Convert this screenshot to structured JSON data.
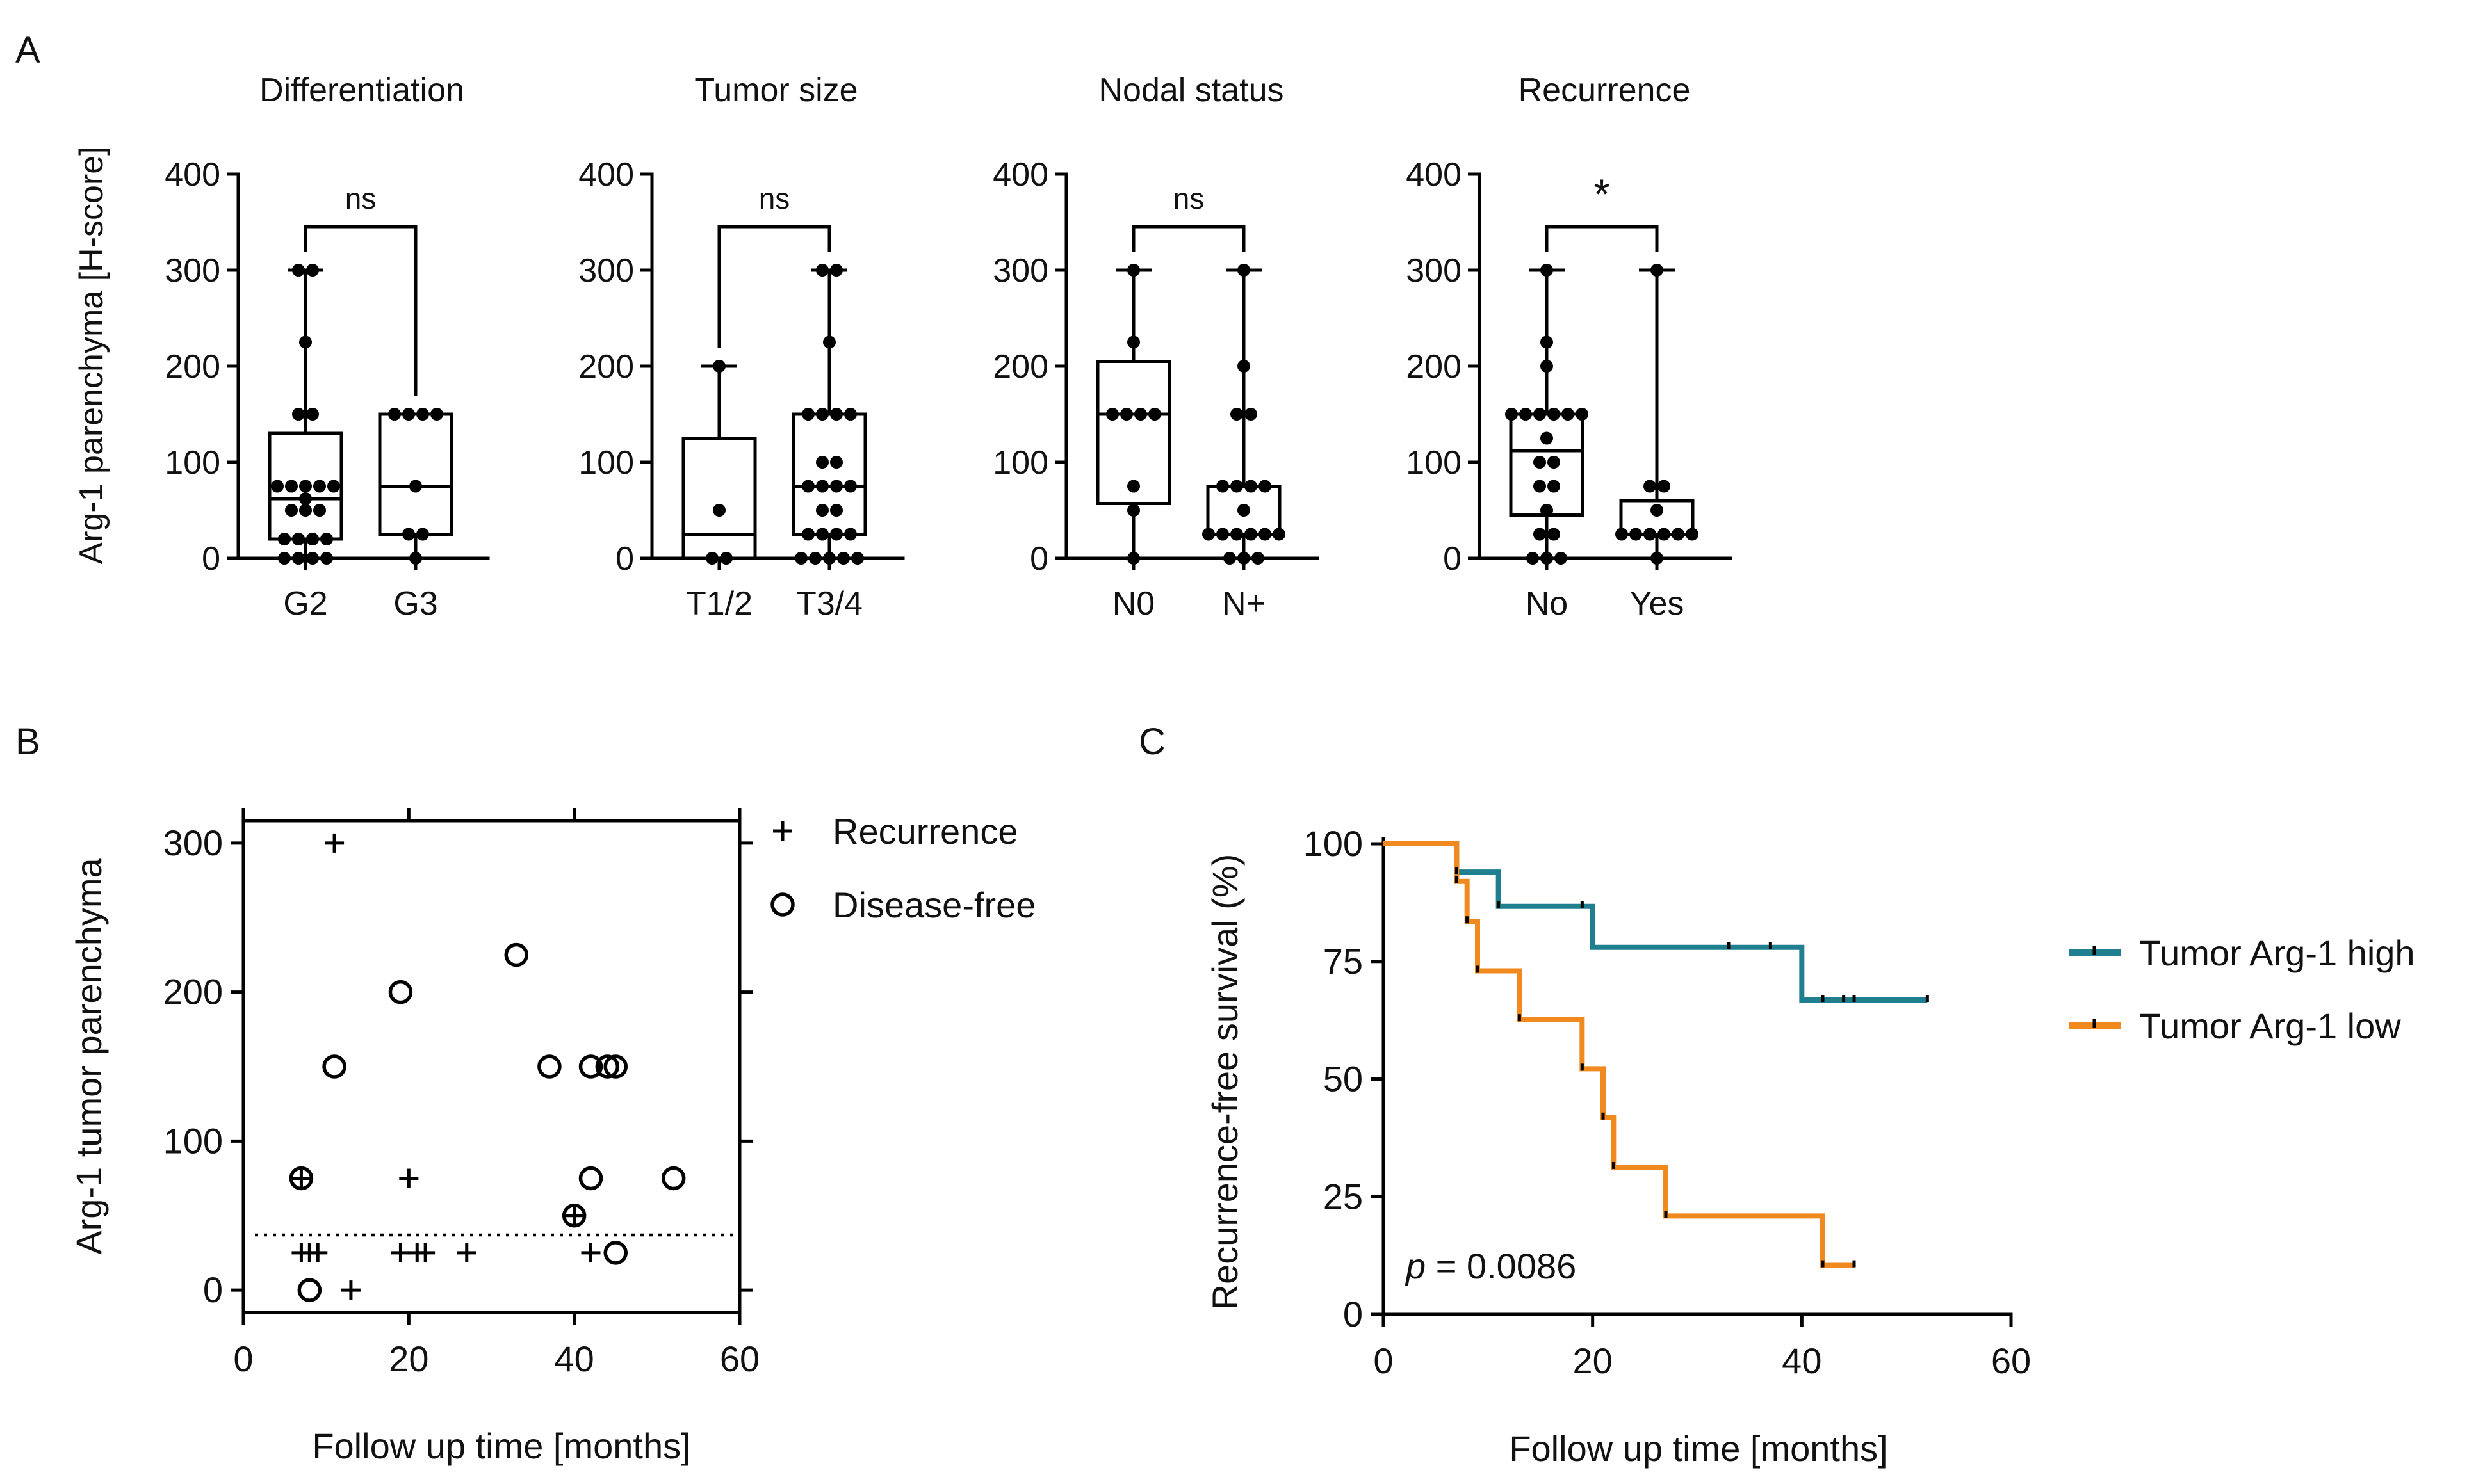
{
  "figure": {
    "panel_letters": [
      "A",
      "B",
      "C"
    ]
  },
  "colors": {
    "axis": "#000000",
    "km_high": "#1F7F8F",
    "km_low": "#F08A1E"
  },
  "chart_data": [
    {
      "id": "A1",
      "type": "box",
      "title": "Differentiation",
      "ylabel": "Arg-1 parenchyma [H-score]",
      "ylim": [
        0,
        400
      ],
      "yticks": [
        0,
        100,
        200,
        300,
        400
      ],
      "categories": [
        "G2",
        "G3"
      ],
      "boxes": [
        {
          "min": 0,
          "q1": 20,
          "median": 62,
          "q3": 130,
          "max": 300
        },
        {
          "min": 0,
          "q1": 25,
          "median": 75,
          "q3": 150,
          "max": 150
        }
      ],
      "points": [
        [
          0,
          0,
          0,
          0,
          20,
          20,
          20,
          20,
          50,
          50,
          50,
          62,
          75,
          75,
          75,
          75,
          75,
          150,
          150,
          225,
          300,
          300
        ],
        [
          0,
          25,
          25,
          75,
          150,
          150,
          150,
          150
        ]
      ],
      "significance": "ns"
    },
    {
      "id": "A2",
      "type": "box",
      "title": "Tumor size",
      "ylabel": "",
      "ylim": [
        0,
        400
      ],
      "yticks": [
        0,
        100,
        200,
        300,
        400
      ],
      "categories": [
        "T1/2",
        "T3/4"
      ],
      "boxes": [
        {
          "min": 0,
          "q1": 0,
          "median": 25,
          "q3": 125,
          "max": 200
        },
        {
          "min": 0,
          "q1": 25,
          "median": 75,
          "q3": 150,
          "max": 300
        }
      ],
      "points": [
        [
          0,
          0,
          50,
          200
        ],
        [
          0,
          0,
          0,
          0,
          0,
          25,
          25,
          25,
          25,
          50,
          50,
          75,
          75,
          75,
          75,
          100,
          100,
          150,
          150,
          150,
          150,
          225,
          300,
          300
        ]
      ],
      "significance": "ns"
    },
    {
      "id": "A3",
      "type": "box",
      "title": "Nodal status",
      "ylabel": "",
      "ylim": [
        0,
        400
      ],
      "yticks": [
        0,
        100,
        200,
        300,
        400
      ],
      "categories": [
        "N0",
        "N+"
      ],
      "boxes": [
        {
          "min": 0,
          "q1": 57,
          "median": 150,
          "q3": 205,
          "max": 300
        },
        {
          "min": 0,
          "q1": 25,
          "median": 25,
          "q3": 75,
          "max": 300
        }
      ],
      "points": [
        [
          0,
          50,
          75,
          150,
          150,
          150,
          150,
          225,
          300
        ],
        [
          0,
          0,
          0,
          25,
          25,
          25,
          25,
          25,
          25,
          50,
          75,
          75,
          75,
          75,
          150,
          150,
          200,
          300
        ]
      ],
      "significance": "ns"
    },
    {
      "id": "A4",
      "type": "box",
      "title": "Recurrence",
      "ylabel": "",
      "ylim": [
        0,
        400
      ],
      "yticks": [
        0,
        100,
        200,
        300,
        400
      ],
      "categories": [
        "No",
        "Yes"
      ],
      "boxes": [
        {
          "min": 0,
          "q1": 45,
          "median": 112,
          "q3": 150,
          "max": 300
        },
        {
          "min": 0,
          "q1": 25,
          "median": 25,
          "q3": 60,
          "max": 300
        }
      ],
      "points": [
        [
          0,
          0,
          0,
          25,
          25,
          50,
          75,
          75,
          100,
          100,
          125,
          150,
          150,
          150,
          150,
          150,
          150,
          200,
          225,
          300
        ],
        [
          0,
          25,
          25,
          25,
          25,
          25,
          25,
          50,
          75,
          75,
          300
        ]
      ],
      "significance": "*"
    },
    {
      "id": "B",
      "type": "scatter",
      "xlabel": "Follow up time [months]",
      "ylabel": "Arg-1 tumor parenchyma",
      "xlim": [
        0,
        60
      ],
      "ylim": [
        -15,
        315
      ],
      "xticks": [
        0,
        20,
        40,
        60
      ],
      "yticks": [
        0,
        100,
        200,
        300
      ],
      "threshold": 37,
      "series": [
        {
          "name": "Recurrence",
          "marker": "+",
          "points": [
            [
              11,
              300
            ],
            [
              7,
              75
            ],
            [
              20,
              75
            ],
            [
              40,
              50
            ],
            [
              7,
              25
            ],
            [
              8,
              25
            ],
            [
              9,
              25
            ],
            [
              19,
              25
            ],
            [
              21,
              25
            ],
            [
              22,
              25
            ],
            [
              27,
              25
            ],
            [
              42,
              25
            ],
            [
              13,
              0
            ]
          ]
        },
        {
          "name": "Disease-free",
          "marker": "o",
          "points": [
            [
              33,
              225
            ],
            [
              19,
              200
            ],
            [
              11,
              150
            ],
            [
              37,
              150
            ],
            [
              42,
              150
            ],
            [
              44,
              150
            ],
            [
              45,
              150
            ],
            [
              7,
              75
            ],
            [
              42,
              75
            ],
            [
              52,
              75
            ],
            [
              40,
              50
            ],
            [
              45,
              25
            ],
            [
              8,
              0
            ]
          ]
        }
      ]
    },
    {
      "id": "C",
      "type": "line",
      "xlabel": "Follow up time [months]",
      "ylabel": "Recurrence-free survival (%)",
      "xlim": [
        0,
        60
      ],
      "ylim": [
        0,
        100
      ],
      "xticks": [
        0,
        20,
        40,
        60
      ],
      "yticks": [
        0,
        25,
        50,
        75,
        100
      ],
      "annotation": {
        "p_label": "p",
        "p_value": "= 0.0086"
      },
      "series": [
        {
          "name": "Tumor Arg-1 high",
          "steps": [
            [
              0,
              100
            ],
            [
              7,
              94
            ],
            [
              11,
              86.7
            ],
            [
              20,
              78
            ],
            [
              40,
              66.8
            ],
            [
              52,
              66.8
            ]
          ],
          "censored": [
            [
              7,
              94
            ],
            [
              11,
              86.7
            ],
            [
              19,
              86.7
            ],
            [
              33,
              78
            ],
            [
              37,
              78
            ],
            [
              42,
              66.8
            ],
            [
              44,
              66.8
            ],
            [
              45,
              66.8
            ],
            [
              52,
              66.8
            ]
          ]
        },
        {
          "name": "Tumor Arg-1 low",
          "steps": [
            [
              0,
              100
            ],
            [
              7,
              92
            ],
            [
              8,
              83.5
            ],
            [
              9,
              73
            ],
            [
              13,
              62.7
            ],
            [
              19,
              52.2
            ],
            [
              21,
              41.8
            ],
            [
              22,
              31.3
            ],
            [
              27,
              20.9
            ],
            [
              42,
              10.4
            ],
            [
              45,
              10.4
            ]
          ],
          "censored": [
            [
              7,
              92
            ],
            [
              8,
              83.5
            ],
            [
              9,
              73
            ],
            [
              13,
              62.7
            ],
            [
              19,
              52.2
            ],
            [
              21,
              41.8
            ],
            [
              22,
              31.3
            ],
            [
              27,
              20.9
            ],
            [
              42,
              10.4
            ],
            [
              45,
              10.4
            ]
          ]
        }
      ]
    }
  ]
}
